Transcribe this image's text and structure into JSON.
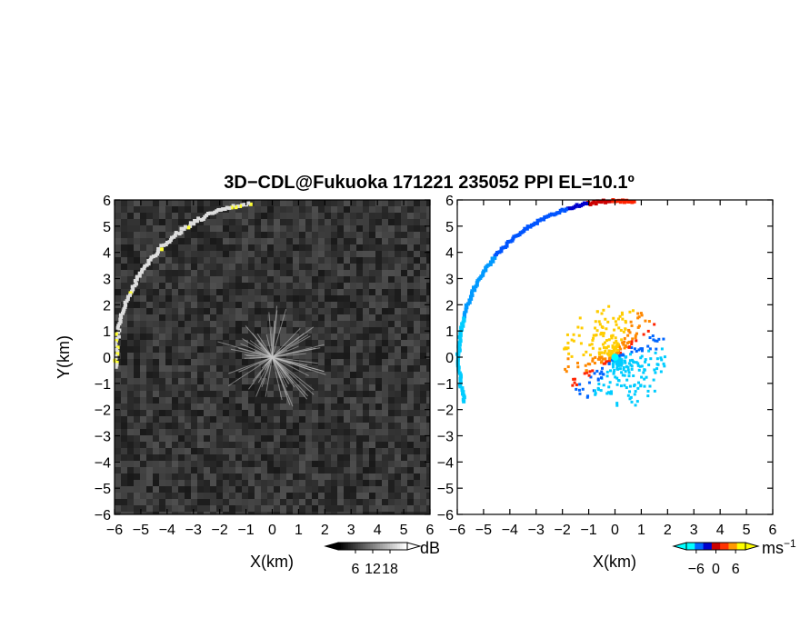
{
  "figure": {
    "title": "3D−CDL@Fukuoka 171221 235052 PPI EL=10.1º"
  },
  "chart_data": [
    {
      "type": "heatmap",
      "panel": "left",
      "xlabel": "X(km)",
      "ylabel": "Y(km)",
      "xlim": [
        -6,
        6
      ],
      "ylim": [
        -6,
        6
      ],
      "x_ticks": [
        "−6",
        "−5",
        "−4",
        "−3",
        "−2",
        "−1",
        "0",
        "1",
        "2",
        "3",
        "4",
        "5",
        "6"
      ],
      "y_ticks": [
        "6",
        "5",
        "4",
        "3",
        "2",
        "1",
        "0",
        "−1",
        "−2",
        "−3",
        "−4",
        "−5",
        "−6"
      ],
      "background": "#2b2b2b",
      "bright_arc": {
        "radius_km": 6.0,
        "start_angle_deg": 98,
        "end_angle_deg": 184,
        "colors": [
          "#dddddd",
          "#ffff33"
        ]
      },
      "colorbar": {
        "unit": "dB",
        "tick_labels": [
          "6",
          "12",
          "18"
        ],
        "tick_values": [
          6,
          12,
          18
        ],
        "range": [
          0,
          24
        ],
        "colors": [
          "#000000",
          "#ffffff"
        ]
      }
    },
    {
      "type": "heatmap",
      "panel": "right",
      "xlabel": "X(km)",
      "ylabel": "",
      "xlim": [
        -6,
        6
      ],
      "ylim": [
        -6,
        6
      ],
      "x_ticks": [
        "−6",
        "−5",
        "−4",
        "−3",
        "−2",
        "−1",
        "0",
        "1",
        "2",
        "3",
        "4",
        "5",
        "6"
      ],
      "y_ticks": [
        "6",
        "5",
        "4",
        "3",
        "2",
        "1",
        "0",
        "−1",
        "−2",
        "−3",
        "−4",
        "−5",
        "−6"
      ],
      "background": "#ffffff",
      "echo_arc": {
        "radius_km": 6.0,
        "start_angle_deg": 83,
        "end_angle_deg": 197
      },
      "center_rays": {
        "max_range_km": 2.0
      },
      "colorbar": {
        "unit": "ms",
        "unit_exponent": "−1",
        "tick_labels": [
          "−6",
          "0",
          "6"
        ],
        "tick_values": [
          -6,
          0,
          6
        ],
        "range": [
          -9,
          9
        ],
        "colors": [
          "#00ffff",
          "#0066ff",
          "#0000cc",
          "#cc0000",
          "#ff3300",
          "#ff9900",
          "#ffff00"
        ]
      }
    }
  ]
}
